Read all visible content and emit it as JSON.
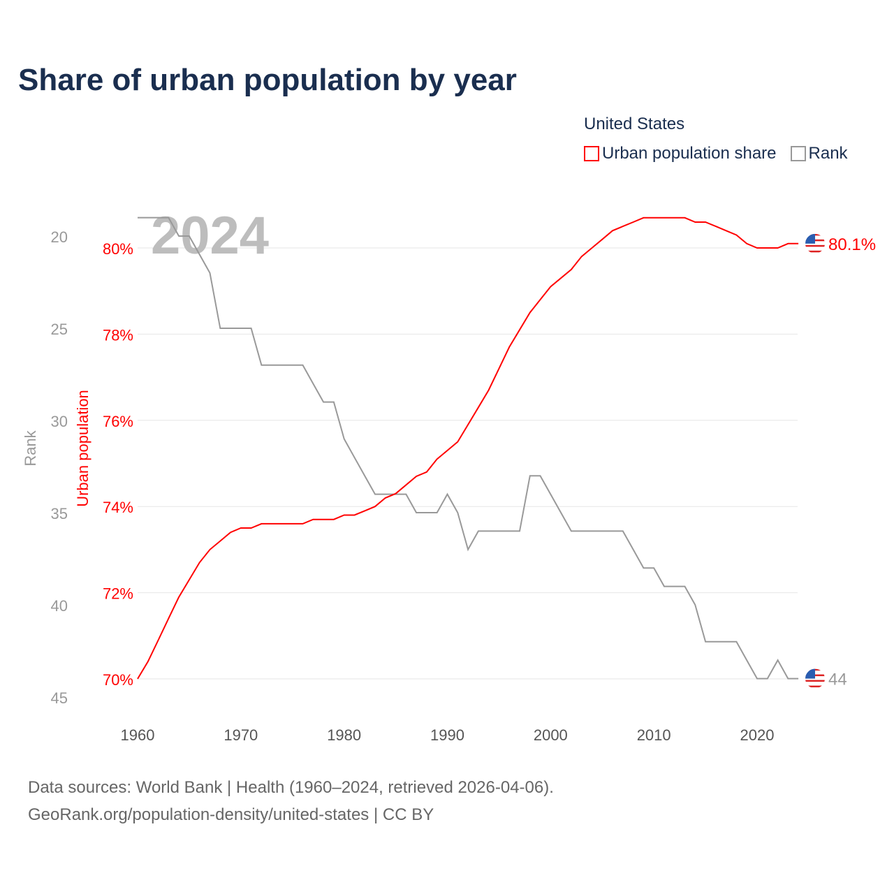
{
  "title": "Share of urban population by year",
  "legend": {
    "title": "United States",
    "items": [
      {
        "label": "Urban population share",
        "color": "#ff0000"
      },
      {
        "label": "Rank",
        "color": "#999999"
      }
    ]
  },
  "footer": {
    "line1": "Data sources: World Bank | Health (1960–2024, retrieved 2026-04-06).",
    "line2": "GeoRank.org/population-density/united-states | CC BY"
  },
  "chart_data": {
    "type": "line",
    "title": "Share of urban population by year",
    "year_watermark": "2024",
    "x": [
      1960,
      1961,
      1962,
      1963,
      1964,
      1965,
      1966,
      1967,
      1968,
      1969,
      1970,
      1971,
      1972,
      1973,
      1974,
      1975,
      1976,
      1977,
      1978,
      1979,
      1980,
      1981,
      1982,
      1983,
      1984,
      1985,
      1986,
      1987,
      1988,
      1989,
      1990,
      1991,
      1992,
      1993,
      1994,
      1995,
      1996,
      1997,
      1998,
      1999,
      2000,
      2001,
      2002,
      2003,
      2004,
      2005,
      2006,
      2007,
      2008,
      2009,
      2010,
      2011,
      2012,
      2013,
      2014,
      2015,
      2016,
      2017,
      2018,
      2019,
      2020,
      2021,
      2022,
      2023,
      2024
    ],
    "xlim": [
      1960,
      2024
    ],
    "xticks": [
      "1960",
      "1970",
      "1980",
      "1990",
      "2000",
      "2010",
      "2020"
    ],
    "series": [
      {
        "name": "Urban population share",
        "axis": "left-inner",
        "ylabel": "Urban population",
        "color": "#ff0000",
        "ylim": [
          70,
          80
        ],
        "yticks": [
          "70%",
          "72%",
          "74%",
          "76%",
          "78%",
          "80%"
        ],
        "end_label": "80.1%",
        "values": [
          70.0,
          70.4,
          70.9,
          71.4,
          71.9,
          72.3,
          72.7,
          73.0,
          73.2,
          73.4,
          73.5,
          73.5,
          73.6,
          73.6,
          73.6,
          73.6,
          73.6,
          73.7,
          73.7,
          73.7,
          73.8,
          73.8,
          73.9,
          74.0,
          74.2,
          74.3,
          74.5,
          74.7,
          74.8,
          75.1,
          75.3,
          75.5,
          75.9,
          76.3,
          76.7,
          77.2,
          77.7,
          78.1,
          78.5,
          78.8,
          79.1,
          79.3,
          79.5,
          79.8,
          80.0,
          80.2,
          80.4,
          80.5,
          80.6,
          80.7,
          80.7,
          80.7,
          80.7,
          80.7,
          80.6,
          80.6,
          80.5,
          80.4,
          80.3,
          80.1,
          80.0,
          80.0,
          80.0,
          80.1,
          80.1
        ]
      },
      {
        "name": "Rank",
        "axis": "left-outer",
        "ylabel": "Rank",
        "color": "#999999",
        "ylim": [
          20,
          45
        ],
        "inverted": true,
        "yticks": [
          "20",
          "25",
          "30",
          "35",
          "40",
          "45"
        ],
        "end_label": "44",
        "values": [
          19,
          19,
          19,
          19,
          20,
          20,
          21,
          22,
          25,
          25,
          25,
          25,
          27,
          27,
          27,
          27,
          27,
          28,
          29,
          29,
          31,
          32,
          33,
          34,
          34,
          34,
          34,
          35,
          35,
          35,
          34,
          35,
          37,
          36,
          36,
          36,
          36,
          36,
          33,
          33,
          34,
          35,
          36,
          36,
          36,
          36,
          36,
          36,
          37,
          38,
          38,
          39,
          39,
          39,
          40,
          42,
          42,
          42,
          42,
          43,
          44,
          44,
          43,
          44,
          44
        ]
      }
    ],
    "grid": true
  }
}
